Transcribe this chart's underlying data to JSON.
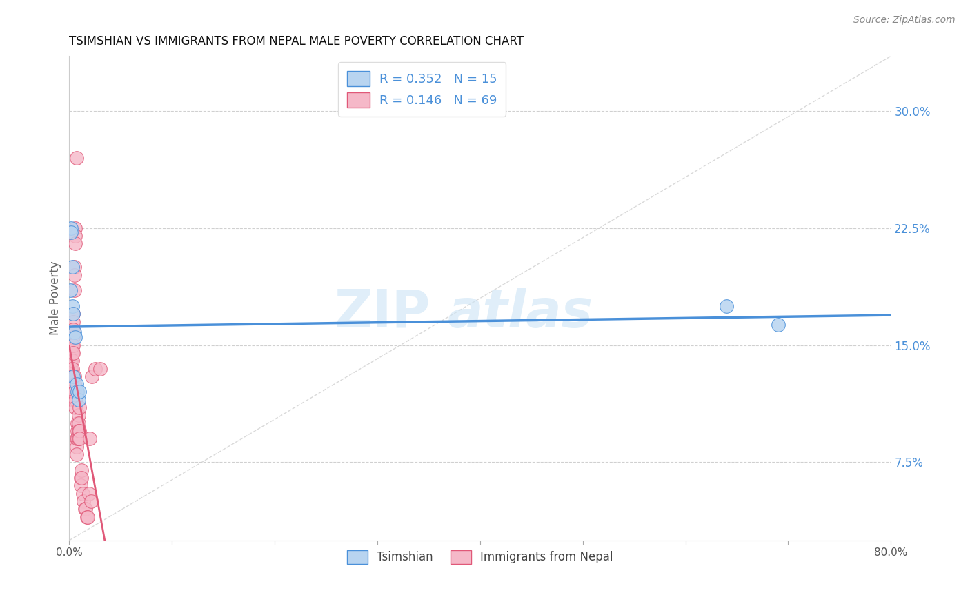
{
  "title": "TSIMSHIAN VS IMMIGRANTS FROM NEPAL MALE POVERTY CORRELATION CHART",
  "source": "Source: ZipAtlas.com",
  "ylabel": "Male Poverty",
  "ytick_values": [
    0.075,
    0.15,
    0.225,
    0.3
  ],
  "ytick_labels": [
    "7.5%",
    "15.0%",
    "22.5%",
    "30.0%"
  ],
  "xlim": [
    0.0,
    0.8
  ],
  "ylim": [
    0.025,
    0.335
  ],
  "legend": {
    "tsimshian": {
      "R": 0.352,
      "N": 15,
      "color": "#b8d4f0",
      "line": "#4a90d9"
    },
    "nepal": {
      "R": 0.146,
      "N": 69,
      "color": "#f5b8c8",
      "line": "#e05878"
    }
  },
  "tsimshian_x": [
    0.001,
    0.002,
    0.002,
    0.003,
    0.003,
    0.004,
    0.004,
    0.005,
    0.006,
    0.007,
    0.008,
    0.009,
    0.01,
    0.64,
    0.69
  ],
  "tsimshian_y": [
    0.185,
    0.225,
    0.222,
    0.2,
    0.175,
    0.17,
    0.13,
    0.158,
    0.155,
    0.125,
    0.12,
    0.115,
    0.12,
    0.175,
    0.163
  ],
  "nepal_x": [
    0.001,
    0.001,
    0.001,
    0.001,
    0.001,
    0.001,
    0.002,
    0.002,
    0.002,
    0.002,
    0.002,
    0.002,
    0.002,
    0.002,
    0.002,
    0.003,
    0.003,
    0.003,
    0.003,
    0.003,
    0.003,
    0.003,
    0.004,
    0.004,
    0.004,
    0.004,
    0.004,
    0.004,
    0.005,
    0.005,
    0.005,
    0.005,
    0.005,
    0.005,
    0.006,
    0.006,
    0.006,
    0.006,
    0.006,
    0.007,
    0.007,
    0.007,
    0.007,
    0.008,
    0.008,
    0.008,
    0.009,
    0.009,
    0.009,
    0.009,
    0.01,
    0.01,
    0.01,
    0.011,
    0.011,
    0.012,
    0.012,
    0.013,
    0.014,
    0.015,
    0.016,
    0.017,
    0.018,
    0.019,
    0.02,
    0.021,
    0.022,
    0.025,
    0.03
  ],
  "nepal_y": [
    0.148,
    0.14,
    0.135,
    0.13,
    0.125,
    0.12,
    0.155,
    0.15,
    0.145,
    0.14,
    0.135,
    0.13,
    0.125,
    0.12,
    0.115,
    0.16,
    0.155,
    0.15,
    0.145,
    0.14,
    0.135,
    0.13,
    0.17,
    0.165,
    0.16,
    0.155,
    0.15,
    0.145,
    0.2,
    0.195,
    0.185,
    0.13,
    0.125,
    0.12,
    0.225,
    0.22,
    0.215,
    0.115,
    0.11,
    0.27,
    0.09,
    0.085,
    0.08,
    0.1,
    0.095,
    0.09,
    0.105,
    0.1,
    0.095,
    0.09,
    0.11,
    0.095,
    0.09,
    0.065,
    0.06,
    0.07,
    0.065,
    0.055,
    0.05,
    0.045,
    0.045,
    0.04,
    0.04,
    0.055,
    0.09,
    0.05,
    0.13,
    0.135,
    0.135
  ],
  "diagonal_color": "#d0d0d0",
  "title_fontsize": 12,
  "source_fontsize": 10
}
